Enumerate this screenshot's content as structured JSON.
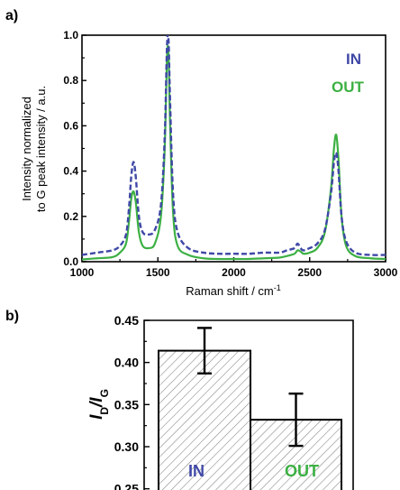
{
  "colors": {
    "in": "#3f48a6",
    "out": "#3cb043",
    "axis": "#000000"
  },
  "panel_a": {
    "label": "a)"
  },
  "panel_b": {
    "label": "b)"
  },
  "chart_data": [
    {
      "type": "line",
      "xlabel_base": "Raman shift / cm",
      "xlabel_sup": "-1",
      "ylabel_line1": "Intensity normalized",
      "ylabel_line2": "to G peak intensity / a.u.",
      "xlim": [
        1000,
        3000
      ],
      "ylim": [
        0,
        1.0
      ],
      "xticks": [
        "1000",
        "1500",
        "2000",
        "2500",
        "3000"
      ],
      "yticks": [
        "0.0",
        "0.2",
        "0.4",
        "0.6",
        "0.8",
        "1.0"
      ],
      "legend": [
        "IN",
        "OUT"
      ],
      "series": [
        {
          "name": "IN",
          "style": "dashed",
          "x": [
            1000,
            1100,
            1200,
            1250,
            1290,
            1310,
            1325,
            1340,
            1355,
            1375,
            1400,
            1440,
            1480,
            1520,
            1545,
            1560,
            1570,
            1580,
            1600,
            1630,
            1700,
            1800,
            1900,
            2000,
            2100,
            2200,
            2300,
            2350,
            2400,
            2420,
            2440,
            2460,
            2500,
            2550,
            2600,
            2640,
            2660,
            2675,
            2690,
            2710,
            2740,
            2800,
            2900,
            3000
          ],
          "y": [
            0.03,
            0.04,
            0.05,
            0.07,
            0.12,
            0.24,
            0.38,
            0.44,
            0.37,
            0.2,
            0.13,
            0.12,
            0.14,
            0.25,
            0.55,
            0.95,
            0.98,
            0.72,
            0.3,
            0.13,
            0.06,
            0.04,
            0.035,
            0.035,
            0.035,
            0.04,
            0.04,
            0.05,
            0.06,
            0.08,
            0.06,
            0.05,
            0.06,
            0.08,
            0.14,
            0.3,
            0.44,
            0.48,
            0.4,
            0.2,
            0.09,
            0.04,
            0.03,
            0.03
          ]
        },
        {
          "name": "OUT",
          "style": "solid",
          "x": [
            1000,
            1100,
            1200,
            1250,
            1290,
            1310,
            1325,
            1340,
            1355,
            1375,
            1400,
            1440,
            1480,
            1520,
            1545,
            1560,
            1570,
            1580,
            1600,
            1630,
            1700,
            1800,
            1900,
            2000,
            2100,
            2200,
            2300,
            2350,
            2400,
            2420,
            2440,
            2460,
            2500,
            2550,
            2600,
            2640,
            2660,
            2675,
            2690,
            2710,
            2740,
            2800,
            2900,
            3000
          ],
          "y": [
            0.01,
            0.015,
            0.02,
            0.04,
            0.08,
            0.18,
            0.28,
            0.31,
            0.26,
            0.13,
            0.07,
            0.06,
            0.08,
            0.2,
            0.5,
            0.9,
            0.92,
            0.62,
            0.22,
            0.07,
            0.03,
            0.015,
            0.012,
            0.012,
            0.012,
            0.015,
            0.018,
            0.025,
            0.035,
            0.05,
            0.045,
            0.035,
            0.04,
            0.06,
            0.13,
            0.32,
            0.5,
            0.56,
            0.45,
            0.2,
            0.07,
            0.025,
            0.015,
            0.012
          ]
        }
      ]
    },
    {
      "type": "bar",
      "ylabel_main": "I",
      "ylabel_sub1": "D",
      "ylabel_slash": "/I",
      "ylabel_sub2": "G",
      "ylim": [
        0.25,
        0.45
      ],
      "yticks": [
        "0.25",
        "0.30",
        "0.35",
        "0.40",
        "0.45"
      ],
      "categories": [
        "IN",
        "OUT"
      ],
      "values": [
        0.414,
        0.332
      ],
      "errors": [
        0.027,
        0.031
      ]
    }
  ]
}
